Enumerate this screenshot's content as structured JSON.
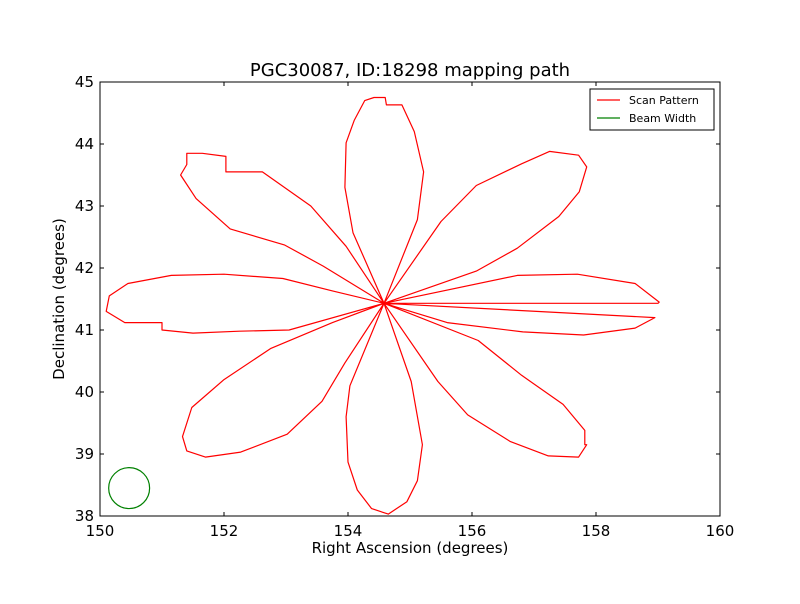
{
  "chart_data": {
    "type": "line",
    "title": "PGC30087, ID:18298 mapping path",
    "xlabel": "Right Ascension (degrees)",
    "ylabel": "Declination (degrees)",
    "xlim": [
      150,
      160
    ],
    "ylim": [
      38,
      45
    ],
    "xticks": [
      "150",
      "152",
      "154",
      "156",
      "158",
      "160"
    ],
    "yticks": [
      "38",
      "39",
      "40",
      "41",
      "42",
      "43",
      "44",
      "45"
    ],
    "grid": false,
    "legend_position": "top-right",
    "legend": [
      {
        "label": "Scan Pattern",
        "color": "#ff0000"
      },
      {
        "label": "Beam Width",
        "color": "#008000"
      }
    ],
    "series": [
      {
        "name": "Scan Pattern",
        "color": "#ff0000",
        "points": [
          [
            154.58,
            41.43
          ],
          [
            155.12,
            42.78
          ],
          [
            155.22,
            43.55
          ],
          [
            155.07,
            44.2
          ],
          [
            154.87,
            44.63
          ],
          [
            154.62,
            44.63
          ],
          [
            154.6,
            44.75
          ],
          [
            154.42,
            44.75
          ],
          [
            154.27,
            44.7
          ],
          [
            154.1,
            44.38
          ],
          [
            153.97,
            44.02
          ],
          [
            153.95,
            43.3
          ],
          [
            154.08,
            42.57
          ],
          [
            154.58,
            41.43
          ],
          [
            155.5,
            42.75
          ],
          [
            156.07,
            43.33
          ],
          [
            156.8,
            43.68
          ],
          [
            157.25,
            43.88
          ],
          [
            157.72,
            43.82
          ],
          [
            157.85,
            43.63
          ],
          [
            157.73,
            43.23
          ],
          [
            157.4,
            42.83
          ],
          [
            156.73,
            42.32
          ],
          [
            156.07,
            41.95
          ],
          [
            154.58,
            41.43
          ],
          [
            156.73,
            41.88
          ],
          [
            157.7,
            41.9
          ],
          [
            158.63,
            41.75
          ],
          [
            159.02,
            41.45
          ],
          [
            159.0,
            41.43
          ],
          [
            154.58,
            41.43
          ],
          [
            155.6,
            41.12
          ],
          [
            156.82,
            40.97
          ],
          [
            157.8,
            40.92
          ],
          [
            158.63,
            41.03
          ],
          [
            158.95,
            41.2
          ],
          [
            154.58,
            41.43
          ],
          [
            156.1,
            40.83
          ],
          [
            156.8,
            40.27
          ],
          [
            157.47,
            39.8
          ],
          [
            157.82,
            39.38
          ],
          [
            157.82,
            39.15
          ],
          [
            157.85,
            39.15
          ],
          [
            157.72,
            38.95
          ],
          [
            157.23,
            38.97
          ],
          [
            156.62,
            39.2
          ],
          [
            155.93,
            39.63
          ],
          [
            155.45,
            40.17
          ],
          [
            154.58,
            41.43
          ],
          [
            155.02,
            40.17
          ],
          [
            155.2,
            39.15
          ],
          [
            155.12,
            38.57
          ],
          [
            154.95,
            38.23
          ],
          [
            154.65,
            38.03
          ],
          [
            154.38,
            38.12
          ],
          [
            154.15,
            38.42
          ],
          [
            154.0,
            38.87
          ],
          [
            153.97,
            39.6
          ],
          [
            154.03,
            40.1
          ],
          [
            154.58,
            41.43
          ],
          [
            153.95,
            40.47
          ],
          [
            153.58,
            39.85
          ],
          [
            153.02,
            39.32
          ],
          [
            152.27,
            39.03
          ],
          [
            151.7,
            38.95
          ],
          [
            151.4,
            39.05
          ],
          [
            151.33,
            39.28
          ],
          [
            151.48,
            39.75
          ],
          [
            152.0,
            40.2
          ],
          [
            152.75,
            40.7
          ],
          [
            153.75,
            41.12
          ],
          [
            154.58,
            41.43
          ],
          [
            153.05,
            41.0
          ],
          [
            152.25,
            40.98
          ],
          [
            151.5,
            40.95
          ],
          [
            151.0,
            41.0
          ],
          [
            151.0,
            41.12
          ],
          [
            150.4,
            41.12
          ],
          [
            150.1,
            41.3
          ],
          [
            150.15,
            41.55
          ],
          [
            150.45,
            41.75
          ],
          [
            151.15,
            41.88
          ],
          [
            152.0,
            41.9
          ],
          [
            152.95,
            41.83
          ],
          [
            153.75,
            41.63
          ],
          [
            154.58,
            41.43
          ],
          [
            153.6,
            42.03
          ],
          [
            152.98,
            42.37
          ],
          [
            152.1,
            42.63
          ],
          [
            151.55,
            43.12
          ],
          [
            151.3,
            43.5
          ],
          [
            151.4,
            43.67
          ],
          [
            151.4,
            43.85
          ],
          [
            151.65,
            43.85
          ],
          [
            152.03,
            43.8
          ],
          [
            152.03,
            43.55
          ],
          [
            152.62,
            43.55
          ],
          [
            153.4,
            43.0
          ],
          [
            153.97,
            42.35
          ],
          [
            154.58,
            41.43
          ]
        ]
      },
      {
        "name": "Beam Width",
        "color": "#008000",
        "shape": "circle",
        "center": [
          150.47,
          38.45
        ],
        "radius_deg": 0.33
      }
    ]
  }
}
